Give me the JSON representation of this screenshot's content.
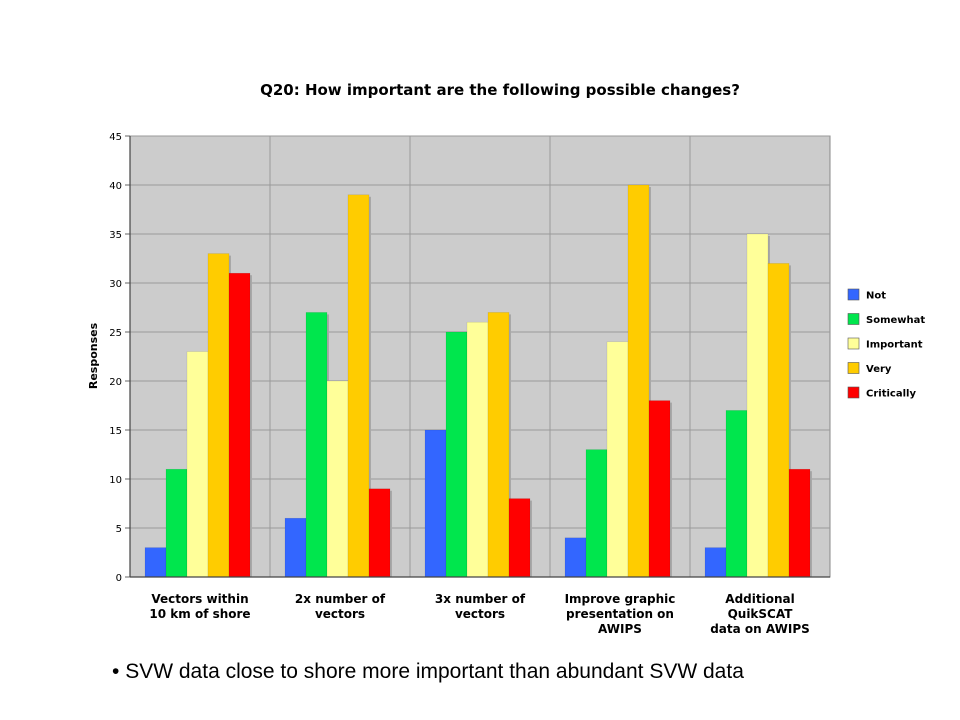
{
  "slide": {
    "bullet_glyph": "•",
    "bullet_text": "SVW data close to shore more important than abundant SVW data"
  },
  "chart_data": {
    "type": "bar",
    "title": "Q20: How important are the following possible changes?",
    "xlabel": "",
    "ylabel": "Responses",
    "ylim": [
      0,
      45
    ],
    "yticks": [
      0,
      5,
      10,
      15,
      20,
      25,
      30,
      35,
      40,
      45
    ],
    "grid": true,
    "legend_position": "right",
    "categories": [
      [
        "Vectors within",
        "10 km of shore"
      ],
      [
        "2x number of",
        "vectors"
      ],
      [
        "3x number of",
        "vectors"
      ],
      [
        "Improve graphic",
        "presentation on",
        "AWIPS"
      ],
      [
        "Additional",
        "QuikSCAT",
        "data on AWIPS"
      ]
    ],
    "series": [
      {
        "name": "Not",
        "color": "#3366ff",
        "values": [
          3,
          6,
          15,
          4,
          3
        ]
      },
      {
        "name": "Somewhat",
        "color": "#00e64d",
        "values": [
          11,
          27,
          25,
          13,
          17
        ]
      },
      {
        "name": "Important",
        "color": "#ffff99",
        "values": [
          23,
          20,
          26,
          24,
          35
        ]
      },
      {
        "name": "Very",
        "color": "#ffcc00",
        "values": [
          33,
          39,
          27,
          40,
          32
        ]
      },
      {
        "name": "Critically",
        "color": "#ff0000",
        "values": [
          31,
          9,
          8,
          18,
          11
        ]
      }
    ],
    "plot_background": "#cccccc"
  }
}
